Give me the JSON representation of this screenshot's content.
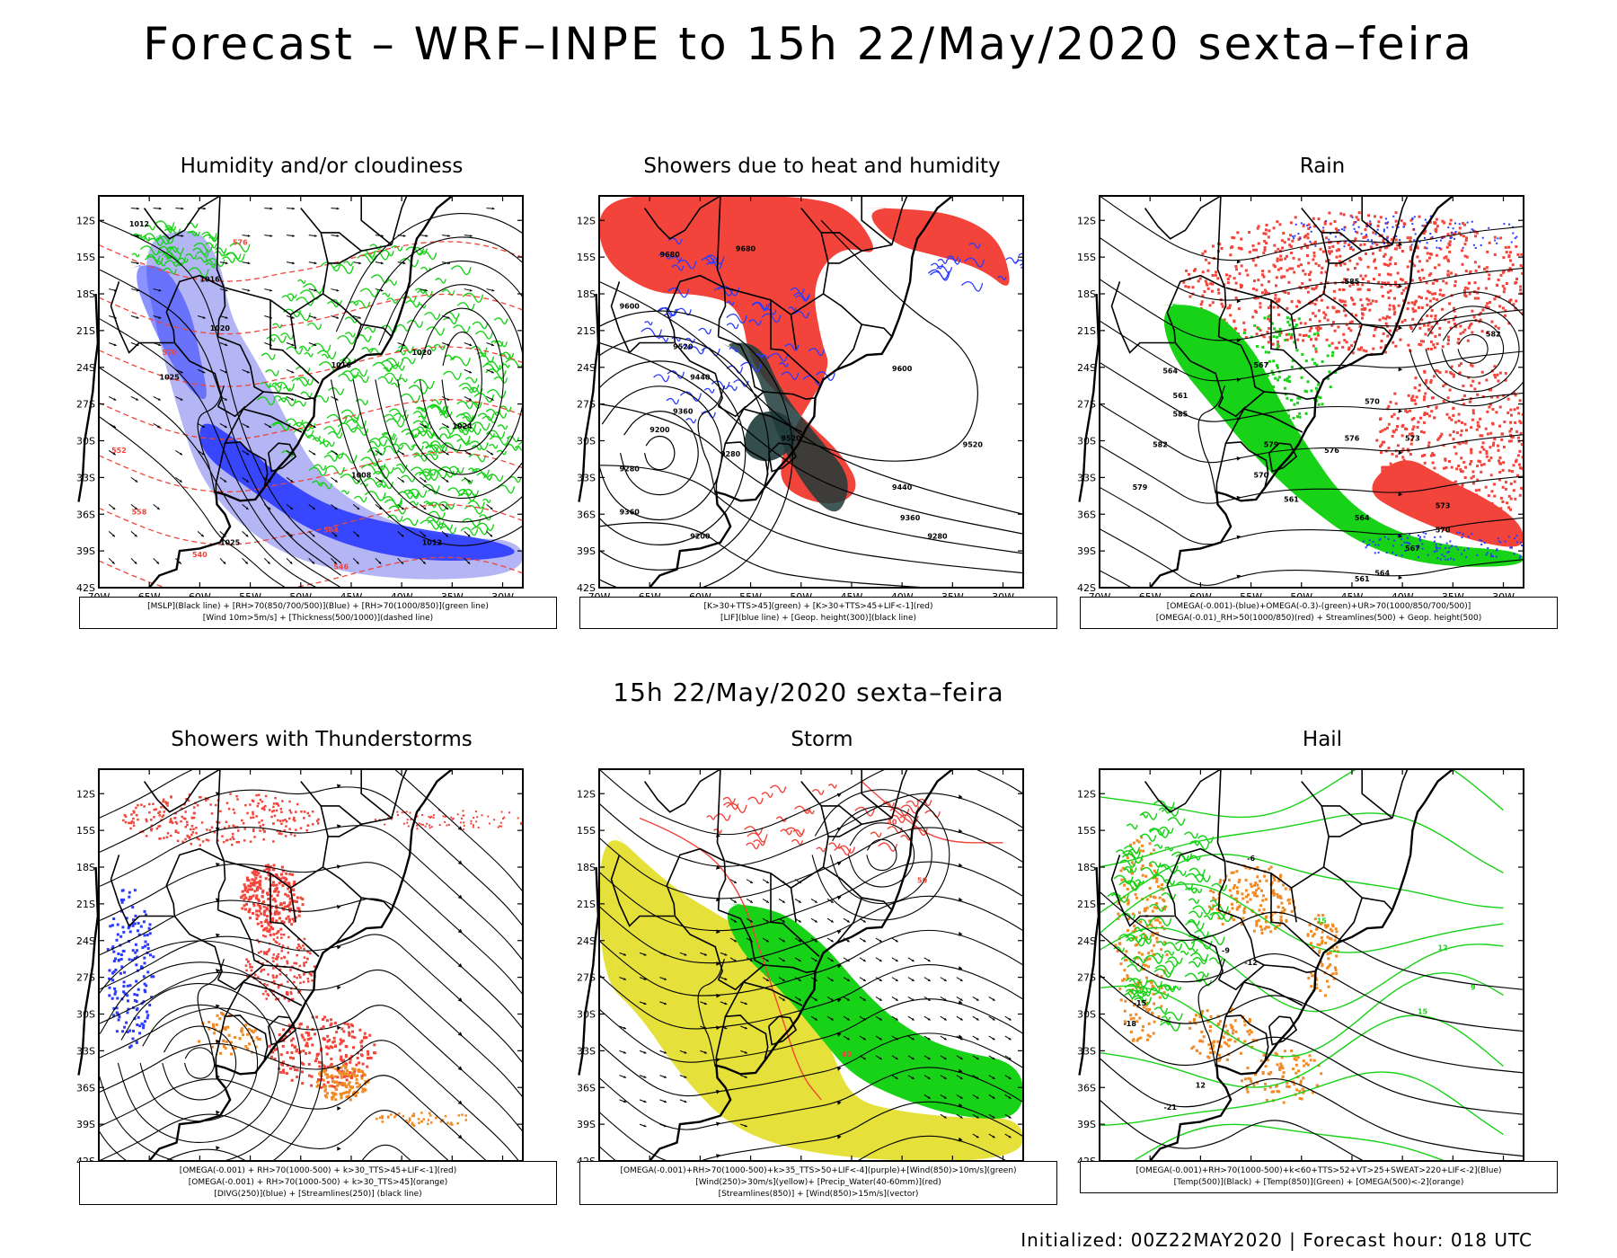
{
  "title": "Forecast – WRF–INPE to 15h 22/May/2020 sexta–feira",
  "mid_title": "15h 22/May/2020 sexta–feira",
  "footer": "Initialized: 00Z22MAY2020 | Forecast hour: 018 UTC",
  "axes": {
    "lon_labels": [
      "70W",
      "65W",
      "60W",
      "55W",
      "50W",
      "45W",
      "40W",
      "35W",
      "30W"
    ],
    "lat_labels": [
      "12S",
      "15S",
      "18S",
      "21S",
      "24S",
      "27S",
      "30S",
      "33S",
      "36S",
      "39S",
      "42S"
    ]
  },
  "colors": {
    "red": "#f2443a",
    "green": "#18d218",
    "blue": "#2a3bff",
    "lavender": "#b3b5f5",
    "teal": "#1e3b3a",
    "yellow": "#e6e13a",
    "orange": "#f08a24",
    "gray": "#8a8a8a"
  },
  "panels": [
    {
      "id": "humidity",
      "title": "Humidity and/or cloudiness",
      "legend": [
        "[MSLP](Black line) + [RH>70(850/700/500)](Blue) + [RH>70(1000/850)](green line)",
        "[Wind 10m>5m/s] + [Thickness(500/1000)](dashed line)"
      ],
      "contour_labels": [
        "1012",
        "1016",
        "1020",
        "1016",
        "1024",
        "1008",
        "1020",
        "570",
        "552",
        "558",
        "564",
        "540",
        "546",
        "576",
        "1025",
        "1025",
        "1012"
      ]
    },
    {
      "id": "showers-heat",
      "title": "Showers due to heat and humidity",
      "legend": [
        "[K>30+TTS>45](green) + [K>30+TTS>45+LIF<-1](red)",
        "[LIF](blue line) + [Geop. height(300)](black line)"
      ],
      "contour_labels": [
        "9680",
        "9680",
        "9600",
        "9520",
        "9440",
        "9360",
        "9200",
        "9280",
        "9600",
        "9520",
        "9440",
        "9360",
        "9280",
        "9200",
        "9520",
        "9280",
        "9360"
      ]
    },
    {
      "id": "rain",
      "title": "Rain",
      "legend": [
        "[OMEGA(-0.001)-(blue)+OMEGA(-0.3)-(green)+UR>70(1000/850/700/500)]",
        "[OMEGA(-0.01)_RH>50(1000/850)(red) + Streamlines(500) + Geop. height(500)"
      ],
      "contour_labels": [
        "585",
        "582",
        "579",
        "576",
        "573",
        "570",
        "567",
        "564",
        "561",
        "585",
        "582",
        "579",
        "576",
        "570",
        "573",
        "564",
        "561",
        "570",
        "567",
        "564",
        "561"
      ]
    },
    {
      "id": "thunderstorms",
      "title": "Showers with Thunderstorms",
      "legend": [
        "[OMEGA(-0.001) + RH>70(1000-500) + k>30_TTS>45+LIF<-1](red)",
        "[OMEGA(-0.001) + RH>70(1000-500) + k>30_TTS>45](orange)",
        "[DIVG(250)](blue) + [Streamlines(250)] (black line)"
      ],
      "contour_labels": []
    },
    {
      "id": "storm",
      "title": "Storm",
      "legend": [
        "[OMEGA(-0.001)+RH>70(1000-500)+k>35_TTS>50+LIF<-4](purple)+[Wind(850)>10m/s](green)",
        "[Wind(250)>30m/s](yellow)+ [Precip_Water(40-60mm)](red)",
        "[Streamlines(850)] + [Wind(850)>15m/s](vector)"
      ],
      "contour_labels": [
        "40",
        "50",
        "40"
      ]
    },
    {
      "id": "hail",
      "title": "Hail",
      "legend": [
        "[OMEGA(-0.001)+RH>70(1000-500)+k<60+TTS>52+VT>25+SWEAT>220+LIF<-2](Blue)",
        "[Temp(500)](Black) + [Temp(850)](Green) + [OMEGA(500)<-2](orange)"
      ],
      "contour_labels": [
        "-9",
        "-12",
        "-15",
        "-18",
        "-21",
        "15",
        "12",
        "9",
        "15",
        "12",
        "-6"
      ]
    }
  ]
}
